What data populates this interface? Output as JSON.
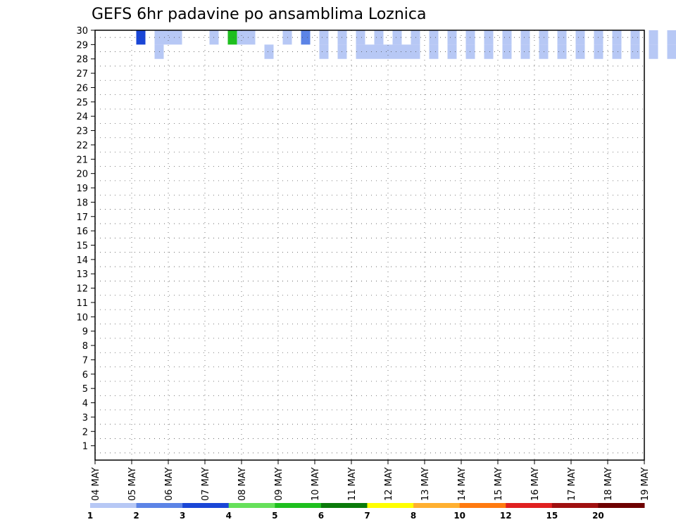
{
  "chart_data": {
    "type": "heatmap",
    "title": "GEFS 6hr padavine po ansamblima Loznica",
    "xlabel": "",
    "ylabel": "",
    "x_tick_labels": [
      "04 MAY",
      "05 MAY",
      "06 MAY",
      "07 MAY",
      "08 MAY",
      "09 MAY",
      "10 MAY",
      "11 MAY",
      "12 MAY",
      "13 MAY",
      "14 MAY",
      "15 MAY",
      "16 MAY",
      "17 MAY",
      "18 MAY",
      "19 MAY"
    ],
    "y_tick_labels": [
      "1",
      "2",
      "3",
      "4",
      "5",
      "6",
      "7",
      "8",
      "9",
      "10",
      "11",
      "12",
      "13",
      "14",
      "15",
      "16",
      "17",
      "18",
      "19",
      "20",
      "21",
      "22",
      "23",
      "24",
      "25",
      "26",
      "27",
      "28",
      "29",
      "30"
    ],
    "grid": true,
    "colorbar": {
      "levels": [
        1,
        2,
        3,
        4,
        5,
        6,
        7,
        8,
        10,
        12,
        15,
        20
      ],
      "tick_labels": [
        "1",
        "2",
        "3",
        "4",
        "5",
        "6",
        "7",
        "8",
        "10",
        "12",
        "15",
        "20"
      ],
      "colors": [
        "#b7c8f5",
        "#5c84e6",
        "#1a46d6",
        "#66e05a",
        "#1ebf1e",
        "#0a7a0a",
        "#ffff00",
        "#ffb030",
        "#ff7a10",
        "#e02020",
        "#a01010",
        "#6e0000"
      ]
    },
    "cells_note": "each cell: [time_index (0 = 04 MAY 00z, 4 per day), member 1-30, color class 0-11]",
    "cells": [
      [
        4,
        30,
        2
      ],
      [
        6,
        30,
        0
      ],
      [
        7,
        30,
        0
      ],
      [
        8,
        30,
        0
      ],
      [
        12,
        30,
        0
      ],
      [
        14,
        30,
        4
      ],
      [
        15,
        30,
        0
      ],
      [
        16,
        30,
        0
      ],
      [
        20,
        30,
        0
      ],
      [
        22,
        30,
        1
      ],
      [
        24,
        30,
        0
      ],
      [
        26,
        30,
        0
      ],
      [
        28,
        30,
        0
      ],
      [
        30,
        30,
        0
      ],
      [
        32,
        30,
        0
      ],
      [
        34,
        30,
        0
      ],
      [
        36,
        30,
        0
      ],
      [
        38,
        30,
        0
      ],
      [
        40,
        30,
        0
      ],
      [
        42,
        30,
        0
      ],
      [
        44,
        30,
        0
      ],
      [
        46,
        30,
        0
      ],
      [
        48,
        30,
        0
      ],
      [
        50,
        30,
        0
      ],
      [
        52,
        30,
        0
      ],
      [
        54,
        30,
        0
      ],
      [
        56,
        30,
        0
      ],
      [
        58,
        30,
        0
      ],
      [
        60,
        30,
        0
      ],
      [
        62,
        30,
        0
      ],
      [
        6,
        29,
        0
      ],
      [
        18,
        29,
        0
      ],
      [
        24,
        29,
        0
      ],
      [
        26,
        29,
        0
      ],
      [
        28,
        29,
        0
      ],
      [
        29,
        29,
        0
      ],
      [
        30,
        29,
        0
      ],
      [
        31,
        29,
        0
      ],
      [
        32,
        29,
        0
      ],
      [
        33,
        29,
        0
      ],
      [
        34,
        29,
        0
      ],
      [
        36,
        29,
        0
      ],
      [
        38,
        29,
        0
      ],
      [
        40,
        29,
        0
      ],
      [
        42,
        29,
        0
      ],
      [
        44,
        29,
        0
      ],
      [
        46,
        29,
        0
      ],
      [
        48,
        29,
        0
      ],
      [
        50,
        29,
        0
      ],
      [
        52,
        29,
        0
      ],
      [
        54,
        29,
        0
      ],
      [
        56,
        29,
        0
      ],
      [
        58,
        29,
        0
      ],
      [
        60,
        29,
        0
      ],
      [
        62,
        29,
        0
      ]
    ]
  }
}
